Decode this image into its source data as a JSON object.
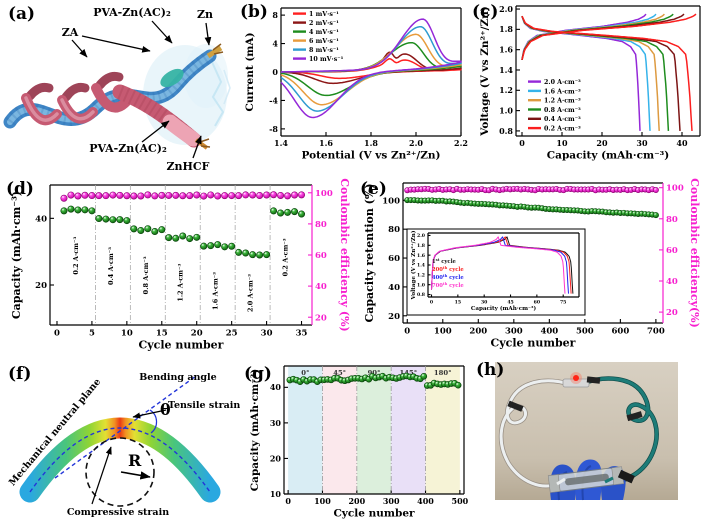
{
  "figure": {
    "background": "#ffffff"
  },
  "panels": {
    "a": {
      "letter": "(a)",
      "labels": {
        "za": "ZA",
        "pva_top": "PVA-Zn(AC)₂",
        "zn": "Zn",
        "pva_bottom": "PVA-Zn(AC)₂",
        "znhcf": "ZnHCF"
      }
    },
    "b": {
      "letter": "(b)"
    },
    "c": {
      "letter": "(c)"
    },
    "d": {
      "letter": "(d)"
    },
    "e": {
      "letter": "(e)"
    },
    "f": {
      "letter": "(f)",
      "labels": {
        "neutral_plane": "Mechanical neutral plane",
        "bending_angle": "Bending angle",
        "theta": "θ",
        "tensile": "Tensile strain",
        "radius": "R",
        "compressive": "Compressive strain"
      }
    },
    "g": {
      "letter": "(g)"
    },
    "h": {
      "letter": "(h)"
    }
  },
  "chart_data": {
    "b": {
      "type": "line",
      "xlabel": "Potential (V vs Zn²⁺/Zn)",
      "ylabel": "Current (mA)",
      "xlim": [
        1.4,
        2.2
      ],
      "ylim": [
        -9,
        9
      ],
      "xticks": [
        "1.4",
        "1.6",
        "1.8",
        "2.0",
        "2.2"
      ],
      "yticks": [
        "-8",
        "-4",
        "0",
        "4",
        "8"
      ],
      "legend_position": "top-left",
      "series": [
        {
          "name": "1 mV·s⁻¹",
          "color": "#ff2020",
          "anodic_peak_mA": 1.6,
          "anodic_peak_V": 1.95,
          "cathodic_peak_mA": -0.9,
          "cathodic_peak_V": 1.66,
          "double_peak": true
        },
        {
          "name": "2 mV·s⁻¹",
          "color": "#8c1616",
          "anodic_peak_mA": 2.4,
          "anodic_peak_V": 1.95,
          "cathodic_peak_mA": -1.6,
          "cathodic_peak_V": 1.63,
          "double_peak": true
        },
        {
          "name": "4 mV·s⁻¹",
          "color": "#1e8c1e",
          "anodic_peak_mA": 3.9,
          "anodic_peak_V": 1.98,
          "cathodic_peak_mA": -3.3,
          "cathodic_peak_V": 1.6,
          "double_peak": false
        },
        {
          "name": "6 mV·s⁻¹",
          "color": "#e89b3c",
          "anodic_peak_mA": 5.0,
          "anodic_peak_V": 2.0,
          "cathodic_peak_mA": -4.6,
          "cathodic_peak_V": 1.58,
          "double_peak": false
        },
        {
          "name": "8 mV·s⁻¹",
          "color": "#2e9bd0",
          "anodic_peak_mA": 6.0,
          "anodic_peak_V": 2.02,
          "cathodic_peak_mA": -5.5,
          "cathodic_peak_V": 1.56,
          "double_peak": false
        },
        {
          "name": "10 mV·s⁻¹",
          "color": "#9428d8",
          "anodic_peak_mA": 7.0,
          "anodic_peak_V": 2.03,
          "cathodic_peak_mA": -6.4,
          "cathodic_peak_V": 1.54,
          "double_peak": false
        }
      ]
    },
    "c": {
      "type": "line",
      "xlabel": "Capacity (mAh·cm⁻³)",
      "ylabel": "Voltage (V vs Zn²⁺/Zn)",
      "xlim": [
        -1.5,
        44.5
      ],
      "ylim": [
        0.75,
        2.03
      ],
      "xticks": [
        "0",
        "10",
        "20",
        "30",
        "40"
      ],
      "yticks": [
        "0.8",
        "1.0",
        "1.2",
        "1.4",
        "1.6",
        "1.8",
        "2.0"
      ],
      "legend_position": "left-middle",
      "series": [
        {
          "name": "2.0 A·cm⁻³",
          "color": "#9428d8",
          "discharge_capacity": 29.5,
          "charge_capacity": 31.0
        },
        {
          "name": "1.6 A·cm⁻³",
          "color": "#35b3ea",
          "discharge_capacity": 32.0,
          "charge_capacity": 33.5
        },
        {
          "name": "1.2 A·cm⁻³",
          "color": "#dd9a40",
          "discharge_capacity": 34.3,
          "charge_capacity": 35.6
        },
        {
          "name": "0.8 A·cm⁻³",
          "color": "#1e8c1e",
          "discharge_capacity": 36.6,
          "charge_capacity": 37.8
        },
        {
          "name": "0.4 A·cm⁻³",
          "color": "#7c1414",
          "discharge_capacity": 39.5,
          "charge_capacity": 40.5
        },
        {
          "name": "0.2 A·cm⁻³",
          "color": "#fb1f1f",
          "discharge_capacity": 42.5,
          "charge_capacity": 43.5
        }
      ]
    },
    "d": {
      "type": "scatter",
      "xlabel": "Cycle number",
      "ylabel": "Capacity (mAh·cm⁻³)",
      "y2label": "Coulombic efficiency (%)",
      "xlim": [
        -1,
        36.5
      ],
      "ylim": [
        8,
        50
      ],
      "y2lim": [
        15,
        105
      ],
      "xticks": [
        "0",
        "5",
        "10",
        "15",
        "20",
        "25",
        "30",
        "35"
      ],
      "yticks": [
        "20",
        "40"
      ],
      "y2ticks": [
        "20",
        "40",
        "60",
        "80",
        "100"
      ],
      "capacity_color": "#1f9e1f",
      "efficiency_color": "#f720cf",
      "separators": [
        5.5,
        10.5,
        15.5,
        20.5,
        25.5,
        30.5
      ],
      "segments": [
        {
          "label": "0.2 A·cm⁻³",
          "cycles": [
            1,
            5
          ],
          "capacity": 42.6
        },
        {
          "label": "0.4 A·cm⁻³",
          "cycles": [
            6,
            10
          ],
          "capacity": 39.5
        },
        {
          "label": "0.8 A·cm⁻³",
          "cycles": [
            11,
            15
          ],
          "capacity": 36.7
        },
        {
          "label": "1.2 A·cm⁻³",
          "cycles": [
            16,
            20
          ],
          "capacity": 34.5
        },
        {
          "label": "1.6 A·cm⁻³",
          "cycles": [
            21,
            25
          ],
          "capacity": 32.0
        },
        {
          "label": "2.0 A·cm⁻³",
          "cycles": [
            26,
            30
          ],
          "capacity": 29.7
        },
        {
          "label": "0.2 A·cm⁻³",
          "cycles": [
            31,
            35
          ],
          "capacity": 42.1
        }
      ],
      "coulombic_efficiency_pct": 98.3,
      "first_cycle_efficiency_pct": 96.5
    },
    "e": {
      "type": "scatter",
      "xlabel": "Cycle number",
      "ylabel": "Capacity retention (%)",
      "y2label": "Coulombic efficiency(%)",
      "xlim": [
        -12,
        720
      ],
      "ylim": [
        15,
        112
      ],
      "y2lim": [
        13,
        103
      ],
      "xticks": [
        "0",
        "100",
        "200",
        "300",
        "400",
        "500",
        "600",
        "700"
      ],
      "yticks": [
        "20",
        "40",
        "60",
        "80",
        "100"
      ],
      "y2ticks": [
        "20",
        "40",
        "60",
        "80",
        "100"
      ],
      "retention_color": "#1f9e1f",
      "efficiency_color": "#f720cf",
      "retention_points": [
        [
          0,
          100
        ],
        [
          50,
          100
        ],
        [
          100,
          99.5
        ],
        [
          150,
          98.5
        ],
        [
          200,
          97.5
        ],
        [
          250,
          96.8
        ],
        [
          300,
          95.8
        ],
        [
          350,
          95.0
        ],
        [
          400,
          94.0
        ],
        [
          450,
          93.2
        ],
        [
          500,
          92.5
        ],
        [
          550,
          92.0
        ],
        [
          600,
          91.3
        ],
        [
          650,
          90.6
        ],
        [
          700,
          90.0
        ]
      ],
      "coulombic_efficiency_pct": 98.8,
      "point_spacing_cycles": 10
    },
    "e_inset": {
      "type": "line",
      "xlabel": "Capacity (mAh·cm⁻³)",
      "ylabel": "Voltage (V vs Zn²⁺/Zn)",
      "xlim": [
        -2,
        84
      ],
      "ylim": [
        0.75,
        2.05
      ],
      "xticks": [
        "0",
        "15",
        "30",
        "45",
        "60",
        "75"
      ],
      "yticks": [
        "0.8",
        "1.0",
        "1.2",
        "1.4",
        "1.6",
        "1.8",
        "2.0"
      ],
      "series": [
        {
          "name": "1st cycle",
          "color": "#141414",
          "peak_capacity": 43.0,
          "end_capacity": 80.5
        },
        {
          "name": "200th cycle",
          "color": "#fb2020",
          "peak_capacity": 42.0,
          "end_capacity": 79.5
        },
        {
          "name": "400th cycle",
          "color": "#2222ee",
          "peak_capacity": 40.5,
          "end_capacity": 78.0
        },
        {
          "name": "700th cycle",
          "color": "#ff33cc",
          "peak_capacity": 38.0,
          "end_capacity": 76.0
        }
      ]
    },
    "g": {
      "type": "scatter",
      "xlabel": "Cycle number",
      "ylabel": "Capacity (mAh·cm⁻³)",
      "xlim": [
        -12,
        512
      ],
      "ylim": [
        10,
        46
      ],
      "xticks": [
        "0",
        "100",
        "200",
        "300",
        "400",
        "500"
      ],
      "yticks": [
        "10",
        "20",
        "30",
        "40"
      ],
      "point_color": "#1f9e1f",
      "separators": [
        100,
        200,
        300,
        400
      ],
      "bands": [
        {
          "label": "0°",
          "range": [
            0,
            100
          ],
          "color": "#d9edf4",
          "capacity": 42.2
        },
        {
          "label": "45°",
          "range": [
            100,
            200
          ],
          "color": "#fbe8ec",
          "capacity": 42.4
        },
        {
          "label": "90°",
          "range": [
            200,
            300
          ],
          "color": "#dcefdc",
          "capacity": 42.9
        },
        {
          "label": "145°",
          "range": [
            300,
            400
          ],
          "color": "#e9e0f7",
          "capacity": 43.0
        },
        {
          "label": "180°",
          "range": [
            400,
            500
          ],
          "color": "#f6f3d6",
          "capacity": 41.0
        }
      ],
      "point_spacing_cycles": 10
    }
  }
}
